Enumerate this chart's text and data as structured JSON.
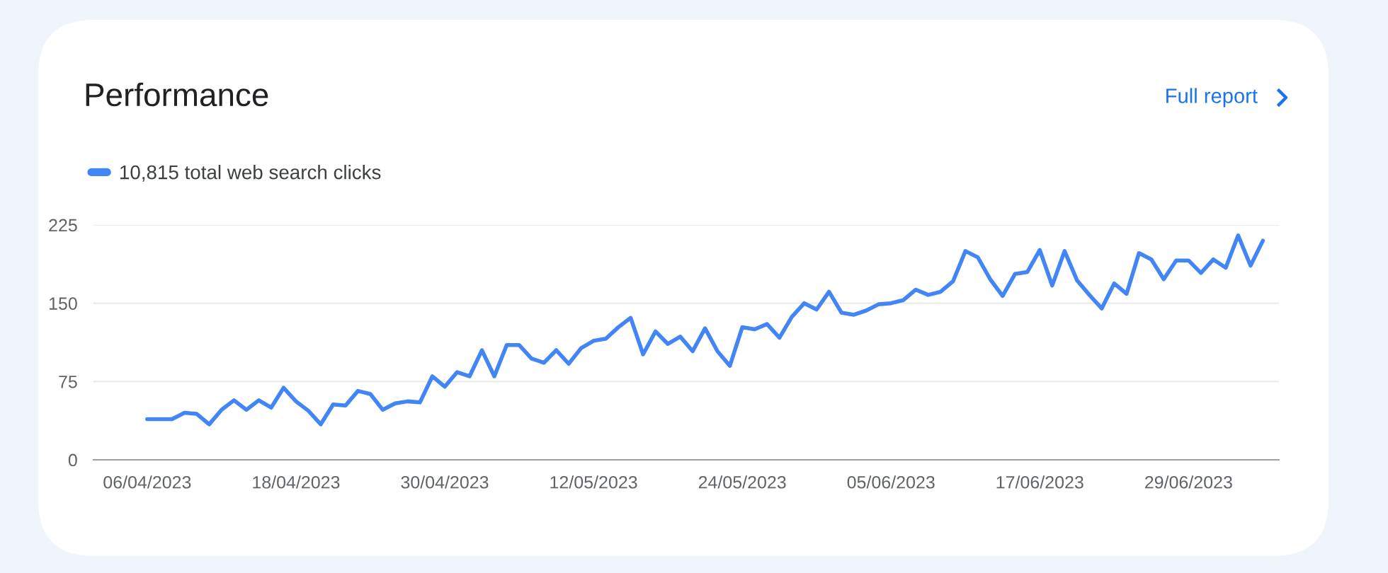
{
  "chart_data": {
    "type": "line",
    "title": "Performance",
    "annotations": [
      "Full report"
    ],
    "x": [
      "2023-04-06",
      "2023-04-07",
      "2023-04-08",
      "2023-04-09",
      "2023-04-10",
      "2023-04-11",
      "2023-04-12",
      "2023-04-13",
      "2023-04-14",
      "2023-04-15",
      "2023-04-16",
      "2023-04-17",
      "2023-04-18",
      "2023-04-19",
      "2023-04-20",
      "2023-04-21",
      "2023-04-22",
      "2023-04-23",
      "2023-04-24",
      "2023-04-25",
      "2023-04-26",
      "2023-04-27",
      "2023-04-28",
      "2023-04-29",
      "2023-04-30",
      "2023-05-01",
      "2023-05-02",
      "2023-05-03",
      "2023-05-04",
      "2023-05-05",
      "2023-05-06",
      "2023-05-07",
      "2023-05-08",
      "2023-05-09",
      "2023-05-10",
      "2023-05-11",
      "2023-05-12",
      "2023-05-13",
      "2023-05-14",
      "2023-05-15",
      "2023-05-16",
      "2023-05-17",
      "2023-05-18",
      "2023-05-19",
      "2023-05-20",
      "2023-05-21",
      "2023-05-22",
      "2023-05-23",
      "2023-05-24",
      "2023-05-25",
      "2023-05-26",
      "2023-05-27",
      "2023-05-28",
      "2023-05-29",
      "2023-05-30",
      "2023-05-31",
      "2023-06-01",
      "2023-06-02",
      "2023-06-03",
      "2023-06-04",
      "2023-06-05",
      "2023-06-06",
      "2023-06-07",
      "2023-06-08",
      "2023-06-09",
      "2023-06-10",
      "2023-06-11",
      "2023-06-12",
      "2023-06-13",
      "2023-06-14",
      "2023-06-15",
      "2023-06-16",
      "2023-06-17",
      "2023-06-18",
      "2023-06-19",
      "2023-06-20",
      "2023-06-21",
      "2023-06-22",
      "2023-06-23",
      "2023-06-24",
      "2023-06-25",
      "2023-06-26",
      "2023-06-27",
      "2023-06-28",
      "2023-06-29",
      "2023-06-30",
      "2023-07-01",
      "2023-07-02",
      "2023-07-03",
      "2023-07-04",
      "2023-07-05"
    ],
    "series": [
      {
        "name": "10,815 total web search clicks",
        "color": "#4285f4",
        "values": [
          39,
          39,
          39,
          45,
          44,
          34,
          48,
          57,
          48,
          57,
          50,
          69,
          56,
          47,
          34,
          53,
          52,
          66,
          63,
          48,
          54,
          56,
          55,
          80,
          70,
          84,
          80,
          105,
          80,
          110,
          110,
          97,
          93,
          105,
          92,
          107,
          114,
          116,
          127,
          136,
          101,
          123,
          111,
          118,
          104,
          126,
          104,
          90,
          127,
          125,
          130,
          117,
          137,
          150,
          144,
          161,
          141,
          139,
          143,
          149,
          150,
          153,
          163,
          158,
          161,
          171,
          200,
          194,
          173,
          157,
          178,
          180,
          201,
          167,
          200,
          172,
          158,
          145,
          169,
          159,
          198,
          192,
          173,
          191,
          191,
          179,
          192,
          184,
          215,
          186,
          210
        ]
      }
    ],
    "xlim": [
      "2023-04-01T16:00",
      "2023-07-06T07:00"
    ],
    "xticks": [
      {
        "value": "2023-04-06",
        "label": "06/04/2023"
      },
      {
        "value": "2023-04-18",
        "label": "18/04/2023"
      },
      {
        "value": "2023-04-30",
        "label": "30/04/2023"
      },
      {
        "value": "2023-05-12",
        "label": "12/05/2023"
      },
      {
        "value": "2023-05-24",
        "label": "24/05/2023"
      },
      {
        "value": "2023-06-05",
        "label": "05/06/2023"
      },
      {
        "value": "2023-06-17",
        "label": "17/06/2023"
      },
      {
        "value": "2023-06-29",
        "label": "29/06/2023"
      }
    ],
    "ylim": [
      0,
      225
    ],
    "yticks": [
      0,
      75,
      150,
      225
    ],
    "grid": "y",
    "legend": "top left",
    "marker": "none",
    "line_style": "solid"
  }
}
